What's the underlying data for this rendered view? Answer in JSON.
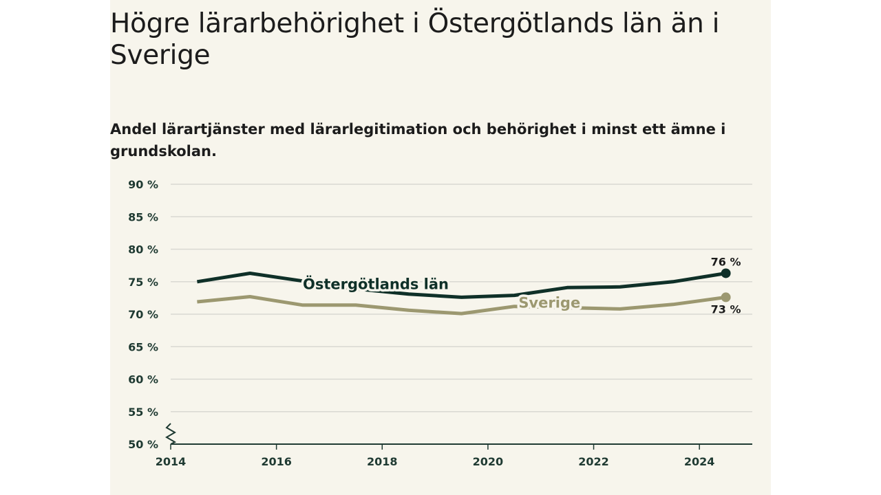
{
  "colors": {
    "background": "#f7f5ec",
    "ostergotland": "#0f3028",
    "sverige": "#9c9870",
    "grid": "#d9d8d2",
    "axis": "#1f3a32"
  },
  "chart_data": {
    "type": "line",
    "title": "Högre lärarbehörighet i Östergötlands län än i Sverige",
    "subtitle": "Andel lärartjänster med lärarlegitimation och behörighet i minst ett ämne i grundskolan.",
    "x": [
      2014.5,
      2015.5,
      2016.5,
      2017.5,
      2018.5,
      2019.5,
      2020.5,
      2021.5,
      2022.5,
      2023.5,
      2024.5
    ],
    "x_ticks": [
      2014,
      2016,
      2018,
      2020,
      2022,
      2024
    ],
    "x_tick_labels": [
      "2014",
      "2016",
      "2018",
      "2020",
      "2022",
      "2024"
    ],
    "xlim": [
      2014,
      2025
    ],
    "y_ticks": [
      50,
      55,
      60,
      65,
      70,
      75,
      80,
      85,
      90
    ],
    "y_tick_labels": [
      "50 %",
      "55 %",
      "60 %",
      "65 %",
      "70 %",
      "75 %",
      "80 %",
      "85 %",
      "90 %"
    ],
    "ylim": [
      50,
      90
    ],
    "grid": true,
    "axis_break": true,
    "series": [
      {
        "name": "Östergötlands län",
        "color": "#0f3028",
        "values": [
          75.0,
          76.3,
          75.1,
          73.9,
          73.1,
          72.6,
          72.9,
          74.1,
          74.2,
          75.0,
          76.3
        ],
        "end_label": "76 %"
      },
      {
        "name": "Sverige",
        "color": "#9c9870",
        "values": [
          71.9,
          72.7,
          71.4,
          71.4,
          70.6,
          70.1,
          71.2,
          71.0,
          70.8,
          71.5,
          72.6
        ],
        "end_label": "73 %"
      }
    ]
  }
}
